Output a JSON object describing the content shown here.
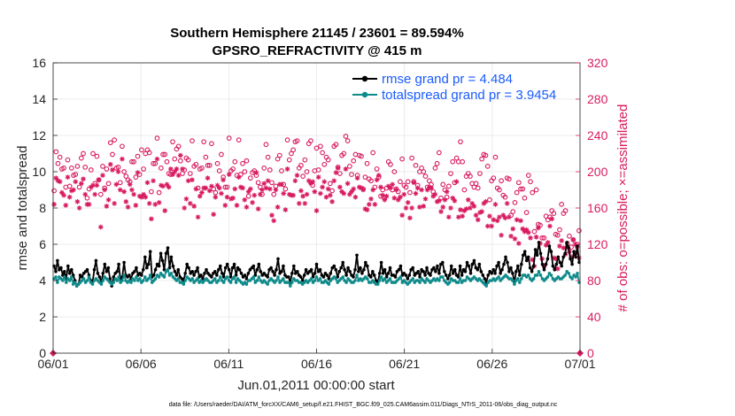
{
  "chart_data": {
    "type": "line",
    "title": "Southern Hemisphere 21145 / 23601 = 89.594%",
    "subtitle": "GPSRO_REFRACTIVITY @ 415 m",
    "xlabel": "Jun.01,2011 00:00:00 start",
    "ylabel": "rmse and totalspread",
    "ylabel_right": "# of obs: o=possible; ×=assimilated",
    "footnote": "data file: /Users/raeder/DAI/ATM_forcXX/CAM6_setup/f.e21.FHIST_BGC.f09_025.CAM6assim.011/Diags_NTrS_2011-06/obs_diag_output.nc",
    "xlim": [
      0,
      30
    ],
    "ylim": [
      0,
      16
    ],
    "ylim_right": [
      0,
      320
    ],
    "x_ticks": [
      0,
      5,
      10,
      15,
      20,
      25,
      30
    ],
    "x_tick_labels": [
      "06/01",
      "06/06",
      "06/11",
      "06/16",
      "06/21",
      "06/26",
      "07/01"
    ],
    "y_ticks": [
      "0",
      "2",
      "4",
      "6",
      "8",
      "10",
      "12",
      "14",
      "16"
    ],
    "y_ticks_right": [
      "0",
      "40",
      "80",
      "120",
      "160",
      "200",
      "240",
      "280",
      "320"
    ],
    "colors": {
      "rmse": "#000000",
      "spread": "#0f8a8a",
      "obs": "#d81b60",
      "legend_text": "#1a5cff"
    },
    "series": [
      {
        "name": "rmse grand pr = 4.484",
        "key": "rmse",
        "axis": "left",
        "values": [
          4.8,
          4.5,
          5.1,
          4.6,
          4.7,
          4.3,
          4.5,
          4.1,
          4.8,
          4.4,
          4.6,
          4.3,
          4.0,
          3.7,
          3.8,
          4.3,
          4.2,
          4.4,
          4.5,
          4.6,
          4.3,
          4.0,
          3.9,
          4.6,
          5.1,
          4.4,
          4.2,
          3.9,
          4.4,
          4.9,
          4.5,
          4.7,
          4.1,
          3.7,
          4.2,
          4.4,
          4.5,
          4.9,
          4.0,
          4.2,
          5.0,
          4.3,
          4.2,
          4.3,
          4.1,
          4.4,
          4.5,
          4.7,
          4.3,
          4.4,
          4.3,
          4.6,
          5.3,
          4.7,
          4.9,
          5.6,
          4.2,
          4.3,
          4.6,
          4.9,
          4.8,
          5.5,
          5.1,
          4.6,
          5.5,
          5.8,
          4.7,
          5.3,
          4.8,
          4.5,
          4.3,
          4.6,
          4.2,
          4.1,
          4.0,
          4.4,
          4.9,
          4.7,
          4.4,
          4.5,
          4.3,
          4.5,
          4.7,
          4.2,
          4.3,
          4.1,
          4.4,
          4.6,
          4.4,
          4.3,
          4.2,
          4.4,
          4.5,
          4.3,
          4.6,
          4.8,
          4.4,
          4.2,
          4.7,
          4.9,
          4.6,
          4.2,
          4.7,
          4.9,
          4.3,
          4.7,
          4.6,
          4.4,
          4.2,
          4.3,
          4.1,
          4.4,
          4.6,
          4.7,
          4.8,
          4.3,
          4.6,
          4.9,
          4.5,
          4.3,
          4.4,
          4.3,
          4.2,
          4.6,
          4.7,
          4.5,
          4.3,
          4.6,
          5.2,
          4.4,
          4.5,
          4.8,
          4.3,
          4.2,
          4.2,
          3.9,
          4.4,
          4.8,
          4.4,
          4.5,
          4.3,
          4.2,
          4.0,
          4.3,
          4.6,
          4.4,
          4.5,
          4.6,
          4.2,
          4.4,
          4.9,
          4.5,
          4.6,
          4.3,
          4.2,
          4.4,
          4.3,
          4.1,
          4.4,
          4.7,
          4.8,
          4.6,
          4.2,
          4.5,
          4.7,
          5.0,
          4.6,
          4.3,
          4.7,
          4.5,
          4.3,
          4.2,
          4.6,
          5.4,
          4.5,
          4.7,
          4.4,
          4.6,
          5.0,
          4.8,
          4.3,
          4.2,
          4.5,
          4.3,
          4.0,
          3.9,
          4.4,
          5.0,
          4.4,
          4.6,
          4.2,
          4.4,
          4.7,
          4.3,
          4.3,
          4.2,
          4.5,
          4.6,
          4.8,
          4.3,
          4.4,
          4.3,
          4.1,
          4.3,
          4.6,
          4.7,
          4.3,
          4.4,
          4.5,
          4.2,
          4.6,
          4.5,
          4.3,
          4.7,
          4.4,
          4.3,
          4.6,
          4.7,
          4.5,
          4.8,
          4.4,
          4.9,
          5.0,
          4.5,
          4.3,
          4.1,
          4.3,
          4.8,
          4.4,
          4.6,
          4.3,
          4.2,
          4.8,
          4.3,
          4.6,
          4.5,
          5.0,
          4.8,
          4.4,
          4.9,
          5.1,
          4.7,
          4.6,
          4.9,
          4.5,
          4.3,
          4.1,
          3.9,
          4.3,
          4.5,
          4.4,
          4.6,
          4.4,
          4.8,
          5.0,
          4.4,
          4.6,
          4.9,
          5.3,
          5.0,
          4.5,
          4.7,
          4.4,
          3.9,
          4.5,
          4.8,
          4.3,
          4.9,
          5.4,
          5.6,
          5.1,
          5.3,
          4.7,
          4.5,
          4.8,
          5.7,
          5.4,
          6.1,
          5.5,
          4.9,
          4.6,
          4.9,
          5.2,
          5.9,
          5.6,
          4.8,
          4.6,
          4.9,
          5.3,
          5.0,
          4.8,
          5.3,
          5.5,
          6.1,
          5.8,
          5.2,
          4.9,
          5.6,
          5.3,
          5.9,
          5.0
        ]
      },
      {
        "name": "totalspread grand pr = 3.9454",
        "key": "spread",
        "axis": "left",
        "values": [
          4.1,
          4.2,
          3.9,
          4.2,
          4.1,
          4.0,
          4.2,
          3.9,
          4.1,
          4.0,
          4.2,
          3.8,
          3.9,
          3.7,
          3.8,
          3.9,
          4.0,
          4.1,
          3.9,
          4.0,
          4.2,
          3.9,
          3.8,
          4.0,
          4.1,
          4.0,
          3.9,
          3.8,
          4.0,
          4.2,
          4.1,
          4.0,
          3.9,
          3.8,
          3.9,
          4.1,
          4.0,
          4.2,
          3.9,
          4.0,
          4.3,
          4.0,
          3.9,
          4.0,
          3.9,
          4.1,
          4.0,
          4.2,
          4.0,
          4.1,
          3.9,
          4.0,
          4.2,
          4.0,
          4.1,
          4.3,
          3.9,
          4.0,
          4.1,
          4.3,
          4.2,
          4.4,
          4.3,
          4.2,
          4.5,
          4.6,
          4.3,
          4.4,
          4.2,
          4.1,
          4.0,
          4.1,
          3.9,
          3.9,
          3.8,
          4.0,
          4.2,
          4.1,
          4.0,
          4.1,
          3.9,
          4.0,
          4.1,
          3.9,
          4.0,
          3.9,
          4.0,
          4.1,
          4.0,
          3.9,
          3.9,
          4.0,
          4.1,
          3.9,
          4.0,
          4.2,
          4.0,
          3.9,
          4.1,
          4.2,
          4.0,
          3.9,
          4.1,
          4.2,
          3.9,
          4.1,
          4.0,
          3.9,
          3.8,
          3.9,
          3.8,
          4.0,
          4.0,
          4.1,
          4.2,
          3.9,
          4.0,
          4.2,
          4.0,
          3.9,
          4.0,
          3.9,
          3.8,
          4.0,
          4.1,
          4.0,
          3.9,
          4.0,
          4.2,
          3.9,
          4.0,
          4.1,
          3.9,
          3.9,
          3.9,
          3.7,
          3.9,
          4.1,
          4.0,
          4.0,
          3.9,
          3.9,
          3.8,
          3.9,
          4.0,
          3.9,
          4.0,
          4.1,
          3.9,
          4.0,
          4.2,
          4.0,
          4.1,
          3.9,
          3.9,
          4.0,
          3.9,
          3.8,
          4.0,
          4.1,
          4.2,
          4.1,
          3.9,
          4.0,
          4.1,
          4.2,
          4.0,
          3.9,
          4.1,
          4.0,
          3.9,
          3.9,
          4.0,
          4.3,
          4.0,
          4.1,
          4.0,
          4.1,
          4.2,
          4.1,
          3.9,
          3.9,
          4.0,
          3.9,
          3.8,
          3.8,
          4.0,
          4.2,
          4.0,
          4.1,
          3.9,
          4.0,
          4.1,
          3.9,
          3.9,
          3.9,
          4.0,
          4.1,
          4.2,
          3.9,
          4.0,
          3.9,
          3.8,
          3.9,
          4.0,
          4.1,
          3.9,
          4.0,
          4.0,
          3.9,
          4.1,
          4.0,
          3.9,
          4.1,
          4.0,
          3.9,
          4.0,
          4.1,
          4.0,
          4.1,
          4.0,
          4.2,
          4.2,
          4.0,
          3.9,
          3.8,
          3.9,
          4.1,
          4.0,
          4.0,
          3.9,
          3.9,
          4.1,
          3.9,
          4.0,
          4.0,
          4.2,
          4.1,
          4.0,
          4.1,
          4.2,
          4.1,
          4.0,
          4.1,
          4.0,
          3.9,
          3.8,
          3.7,
          3.9,
          4.0,
          4.0,
          4.1,
          4.0,
          4.1,
          4.2,
          4.0,
          4.1,
          4.2,
          4.3,
          4.2,
          4.1,
          4.1,
          4.0,
          3.8,
          4.0,
          4.1,
          3.9,
          4.1,
          4.3,
          4.3,
          4.2,
          4.3,
          4.1,
          4.0,
          4.1,
          4.3,
          4.3,
          4.5,
          4.3,
          4.1,
          4.0,
          4.1,
          4.2,
          4.4,
          4.3,
          4.1,
          4.0,
          4.1,
          4.2,
          4.1,
          4.1,
          4.2,
          4.3,
          4.5,
          4.4,
          4.2,
          4.1,
          4.3,
          4.2,
          4.4,
          3.9
        ]
      }
    ],
    "obs_possible": [
      179,
      222,
      209,
      216,
      203,
      204,
      183,
      213,
      184,
      204,
      196,
      197,
      206,
      183,
      215,
      220,
      205,
      171,
      181,
      202,
      220,
      187,
      217,
      191,
      175,
      206,
      182,
      203,
      187,
      232,
      219,
      235,
      204,
      205,
      188,
      228,
      200,
      195,
      191,
      189,
      211,
      211,
      194,
      217,
      197,
      224,
      203,
      220,
      224,
      221,
      178,
      209,
      209,
      237,
      177,
      204,
      219,
      219,
      211,
      198,
      197,
      233,
      214,
      225,
      228,
      212,
      198,
      202,
      215,
      213,
      198,
      234,
      206,
      208,
      182,
      203,
      204,
      233,
      216,
      207,
      207,
      231,
      181,
      177,
      209,
      201,
      219,
      194,
      183,
      183,
      237,
      201,
      203,
      211,
      196,
      235,
      197,
      209,
      200,
      212,
      173,
      193,
      199,
      201,
      196,
      188,
      183,
      175,
      204,
      230,
      216,
      202,
      188,
      175,
      184,
      214,
      218,
      201,
      186,
      181,
      235,
      213,
      220,
      224,
      233,
      234,
      204,
      207,
      195,
      213,
      200,
      231,
      234,
      185,
      201,
      226,
      202,
      228,
      221,
      208,
      216,
      213,
      187,
      179,
      228,
      230,
      205,
      198,
      218,
      220,
      239,
      234,
      206,
      197,
      212,
      219,
      196,
      218,
      217,
      181,
      194,
      209,
      192,
      190,
      221,
      183,
      203,
      194,
      173,
      180,
      171,
      182,
      211,
      208,
      180,
      200,
      181,
      178,
      189,
      214,
      185,
      183,
      189,
      177,
      215,
      189,
      207,
      185,
      200,
      204,
      200,
      195,
      183,
      190,
      186,
      178,
      204,
      209,
      221,
      171,
      186,
      180,
      172,
      184,
      198,
      211,
      188,
      215,
      211,
      233,
      211,
      180,
      195,
      198,
      195,
      187,
      183,
      187,
      182,
      198,
      214,
      219,
      218,
      206,
      169,
      190,
      193,
      216,
      182,
      180,
      190,
      174,
      172,
      193,
      192,
      152,
      156,
      166,
      177,
      188,
      181,
      181,
      171,
      155,
      196,
      189,
      177,
      134,
      180,
      142,
      141,
      127,
      127,
      151,
      147,
      150,
      157,
      154,
      131,
      130,
      136,
      164,
      154,
      157,
      121,
      129,
      117,
      125,
      110,
      120,
      135
    ],
    "obs_assimilated": [
      164,
      193,
      190,
      189,
      177,
      174,
      163,
      194,
      172,
      179,
      180,
      189,
      167,
      160,
      187,
      192,
      175,
      164,
      164,
      183,
      185,
      175,
      185,
      191,
      139,
      196,
      180,
      162,
      169,
      208,
      202,
      165,
      186,
      200,
      180,
      214,
      178,
      167,
      161,
      186,
      180,
      175,
      163,
      199,
      173,
      172,
      175,
      172,
      188,
      165,
      148,
      190,
      164,
      214,
      166,
      185,
      184,
      157,
      186,
      183,
      203,
      197,
      200,
      203,
      196,
      218,
      203,
      160,
      170,
      190,
      165,
      191,
      162,
      181,
      150,
      173,
      177,
      182,
      182,
      193,
      179,
      184,
      153,
      172,
      185,
      182,
      176,
      191,
      163,
      172,
      197,
      170,
      171,
      181,
      163,
      194,
      183,
      182,
      169,
      161,
      178,
      181,
      166,
      174,
      199,
      159,
      175,
      180,
      187,
      182,
      190,
      181,
      152,
      146,
      180,
      161,
      186,
      186,
      176,
      158,
      203,
      175,
      174,
      174,
      190,
      196,
      165,
      179,
      173,
      165,
      175,
      190,
      187,
      189,
      178,
      157,
      194,
      176,
      183,
      189,
      172,
      181,
      174,
      167,
      190,
      199,
      204,
      183,
      178,
      176,
      203,
      187,
      175,
      178,
      181,
      172,
      193,
      183,
      182,
      180,
      159,
      158,
      164,
      170,
      180,
      164,
      191,
      196,
      183,
      174,
      169,
      173,
      184,
      182,
      186,
      171,
      180,
      169,
      172,
      152,
      175,
      160,
      166,
      149,
      160,
      188,
      176,
      182,
      161,
      180,
      162,
      170,
      180,
      183,
      182,
      173,
      175,
      167,
      168,
      156,
      161,
      169,
      178,
      150,
      160,
      171,
      168,
      189,
      150,
      158,
      151,
      157,
      159,
      169,
      160,
      165,
      162,
      152,
      147,
      155,
      156,
      165,
      167,
      140,
      151,
      140,
      147,
      164,
      146,
      150,
      130,
      152,
      149,
      165,
      150,
      129,
      137,
      126,
      147,
      121,
      146,
      137,
      134,
      136,
      133,
      127,
      103,
      96,
      128,
      138,
      121,
      104,
      96,
      119,
      122,
      140,
      148,
      105,
      104,
      93,
      118,
      124,
      116,
      109,
      117,
      112,
      106,
      125,
      120,
      117,
      105
    ]
  }
}
